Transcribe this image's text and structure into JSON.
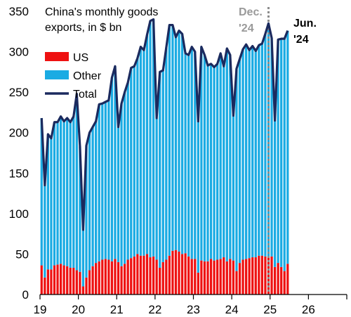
{
  "chart_data": {
    "type": "bar",
    "title_lines": [
      "China's monthly goods",
      "exports, in $ bn"
    ],
    "xlabel": "",
    "ylabel": "",
    "ylim": [
      0,
      350
    ],
    "yticks": [
      0,
      50,
      100,
      150,
      200,
      250,
      300,
      350
    ],
    "xticks": [
      {
        "label": "19",
        "pos": 0
      },
      {
        "label": "20",
        "pos": 12
      },
      {
        "label": "21",
        "pos": 24
      },
      {
        "label": "22",
        "pos": 36
      },
      {
        "label": "23",
        "pos": 48
      },
      {
        "label": "24",
        "pos": 60
      },
      {
        "label": "25",
        "pos": 72
      },
      {
        "label": "26",
        "pos": 84
      }
    ],
    "x_range": [
      0,
      96
    ],
    "colors": {
      "us": "#ee1111",
      "other": "#1aabe3",
      "total": "#1b2a5e",
      "marker": "#8c8c8c"
    },
    "legend": [
      {
        "label": "US",
        "kind": "bar",
        "color": "#ee1111"
      },
      {
        "label": "Other",
        "kind": "bar",
        "color": "#1aabe3"
      },
      {
        "label": "Total",
        "kind": "line",
        "color": "#1b2a5e"
      }
    ],
    "annotations": [
      {
        "lines": [
          "Dec.",
          "'24"
        ],
        "style": "gray"
      },
      {
        "lines": [
          "Jun.",
          "'24"
        ],
        "style": "dark"
      }
    ],
    "vline_month_index": 71,
    "series": [
      {
        "name": "US",
        "values": [
          36,
          21,
          31,
          31,
          36,
          37,
          38,
          36,
          35,
          33,
          33,
          30,
          28,
          10,
          21,
          30,
          35,
          39,
          41,
          43,
          44,
          43,
          41,
          44,
          40,
          35,
          38,
          43,
          45,
          47,
          50,
          48,
          48,
          50,
          46,
          47,
          43,
          33,
          40,
          43,
          48,
          54,
          55,
          53,
          50,
          51,
          47,
          44,
          44,
          27,
          42,
          41,
          41,
          44,
          42,
          43,
          44,
          46,
          41,
          44,
          42,
          29,
          39,
          43,
          44,
          45,
          46,
          46,
          48,
          48,
          47,
          47,
          47,
          34,
          39,
          34,
          29,
          38
        ]
      },
      {
        "name": "Total",
        "values": [
          218,
          135,
          198,
          193,
          213,
          213,
          220,
          214,
          218,
          213,
          220,
          248,
          183,
          80,
          184,
          200,
          207,
          214,
          235,
          236,
          238,
          240,
          268,
          282,
          207,
          236,
          250,
          262,
          280,
          282,
          292,
          306,
          302,
          321,
          338,
          340,
          218,
          275,
          277,
          305,
          333,
          333,
          318,
          326,
          322,
          298,
          296,
          306,
          300,
          214,
          306,
          296,
          283,
          285,
          281,
          285,
          298,
          282,
          304,
          296,
          221,
          279,
          291,
          303,
          309,
          302,
          307,
          301,
          308,
          310,
          322,
          335,
          317,
          215,
          315,
          316,
          316,
          326
        ]
      }
    ]
  }
}
